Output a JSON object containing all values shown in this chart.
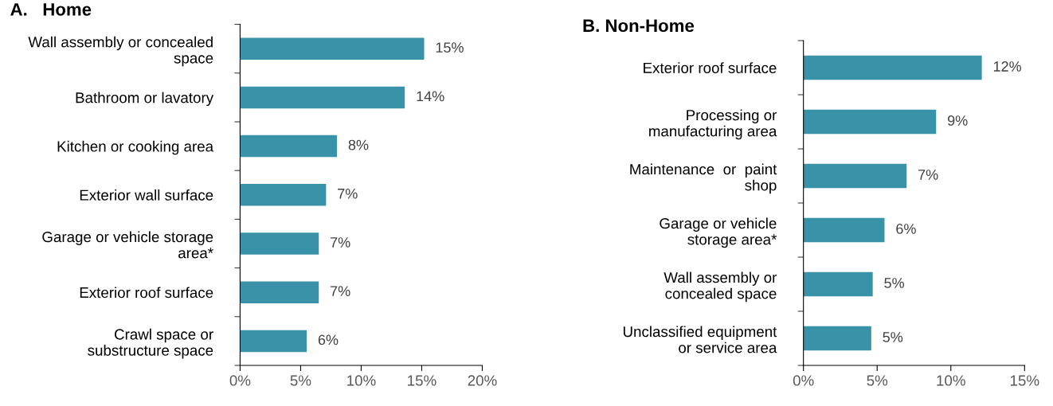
{
  "chart_data": [
    {
      "type": "bar",
      "title": "A.   Home",
      "orientation": "horizontal",
      "color": "#3a92a8",
      "categories": [
        "Wall assembly or concealed space",
        "Bathroom or lavatory",
        "Kitchen or cooking area",
        "Exterior wall surface",
        "Garage or vehicle storage area*",
        "Exterior roof surface",
        "Crawl space or substructure space"
      ],
      "values": [
        15.2,
        13.6,
        8.0,
        7.1,
        6.5,
        6.5,
        5.5
      ],
      "value_labels": [
        "15%",
        "14%",
        "8%",
        "7%",
        "7%",
        "7%",
        "6%"
      ],
      "xlim": [
        0,
        20
      ],
      "xticks": [
        {
          "value": 0,
          "label": "0%"
        },
        {
          "value": 5,
          "label": "5%"
        },
        {
          "value": 10,
          "label": "10%"
        },
        {
          "value": 15,
          "label": "15%"
        },
        {
          "value": 20,
          "label": "20%"
        }
      ],
      "grid": false,
      "legend": false
    },
    {
      "type": "bar",
      "title": "B. Non-Home",
      "orientation": "horizontal",
      "color": "#3a92a8",
      "categories": [
        "Exterior roof surface",
        "Processing or manufacturing area",
        "Maintenance  or  paint shop",
        "Garage or vehicle storage area*",
        "Wall assembly or concealed space",
        "Unclassified equipment or service area"
      ],
      "values": [
        12.1,
        9.0,
        7.0,
        5.5,
        4.7,
        4.6
      ],
      "value_labels": [
        "12%",
        "9%",
        "7%",
        "6%",
        "5%",
        "5%"
      ],
      "xlim": [
        0,
        15
      ],
      "xticks": [
        {
          "value": 0,
          "label": "0%"
        },
        {
          "value": 5,
          "label": "5%"
        },
        {
          "value": 10,
          "label": "10%"
        },
        {
          "value": 15,
          "label": "15%"
        }
      ],
      "grid": false,
      "legend": false
    }
  ]
}
